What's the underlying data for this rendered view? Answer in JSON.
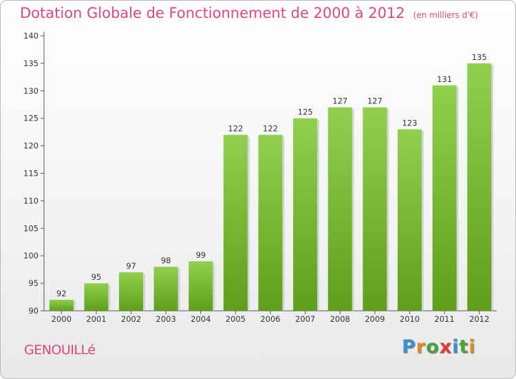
{
  "chart_data": {
    "type": "bar",
    "title": "Dotation Globale de Fonctionnement de 2000 à 2012",
    "subtitle": "(en milliers d'€)",
    "categories": [
      "2000",
      "2001",
      "2002",
      "2003",
      "2004",
      "2005",
      "2006",
      "2007",
      "2008",
      "2009",
      "2010",
      "2011",
      "2012"
    ],
    "values": [
      92,
      95,
      97,
      98,
      99,
      122,
      122,
      125,
      127,
      127,
      123,
      131,
      135
    ],
    "data_labels": [
      "92",
      "95",
      "97",
      "98",
      "99",
      "122",
      "122",
      "125",
      "127",
      "127",
      "123",
      "131",
      "135"
    ],
    "y_ticks": [
      "90",
      "95",
      "100",
      "105",
      "110",
      "115",
      "120",
      "125",
      "130",
      "135",
      "140"
    ],
    "ylim": [
      90,
      140
    ],
    "grid": false,
    "bar_color_top": "#8fd14f",
    "bar_color_bottom": "#5e9e1a"
  },
  "footer": {
    "place_name": "GENOUILLé",
    "logo_letters": [
      {
        "ch": "P",
        "color": "#3f8fd6"
      },
      {
        "ch": "r",
        "color": "#e58a22"
      },
      {
        "ch": "o",
        "color": "#4aa33a"
      },
      {
        "ch": "x",
        "color": "#e53a3a"
      },
      {
        "ch": "i",
        "color": "#3f8fd6"
      },
      {
        "ch": "t",
        "color": "#4aa33a"
      },
      {
        "ch": "i",
        "color": "#e58a22"
      }
    ]
  }
}
